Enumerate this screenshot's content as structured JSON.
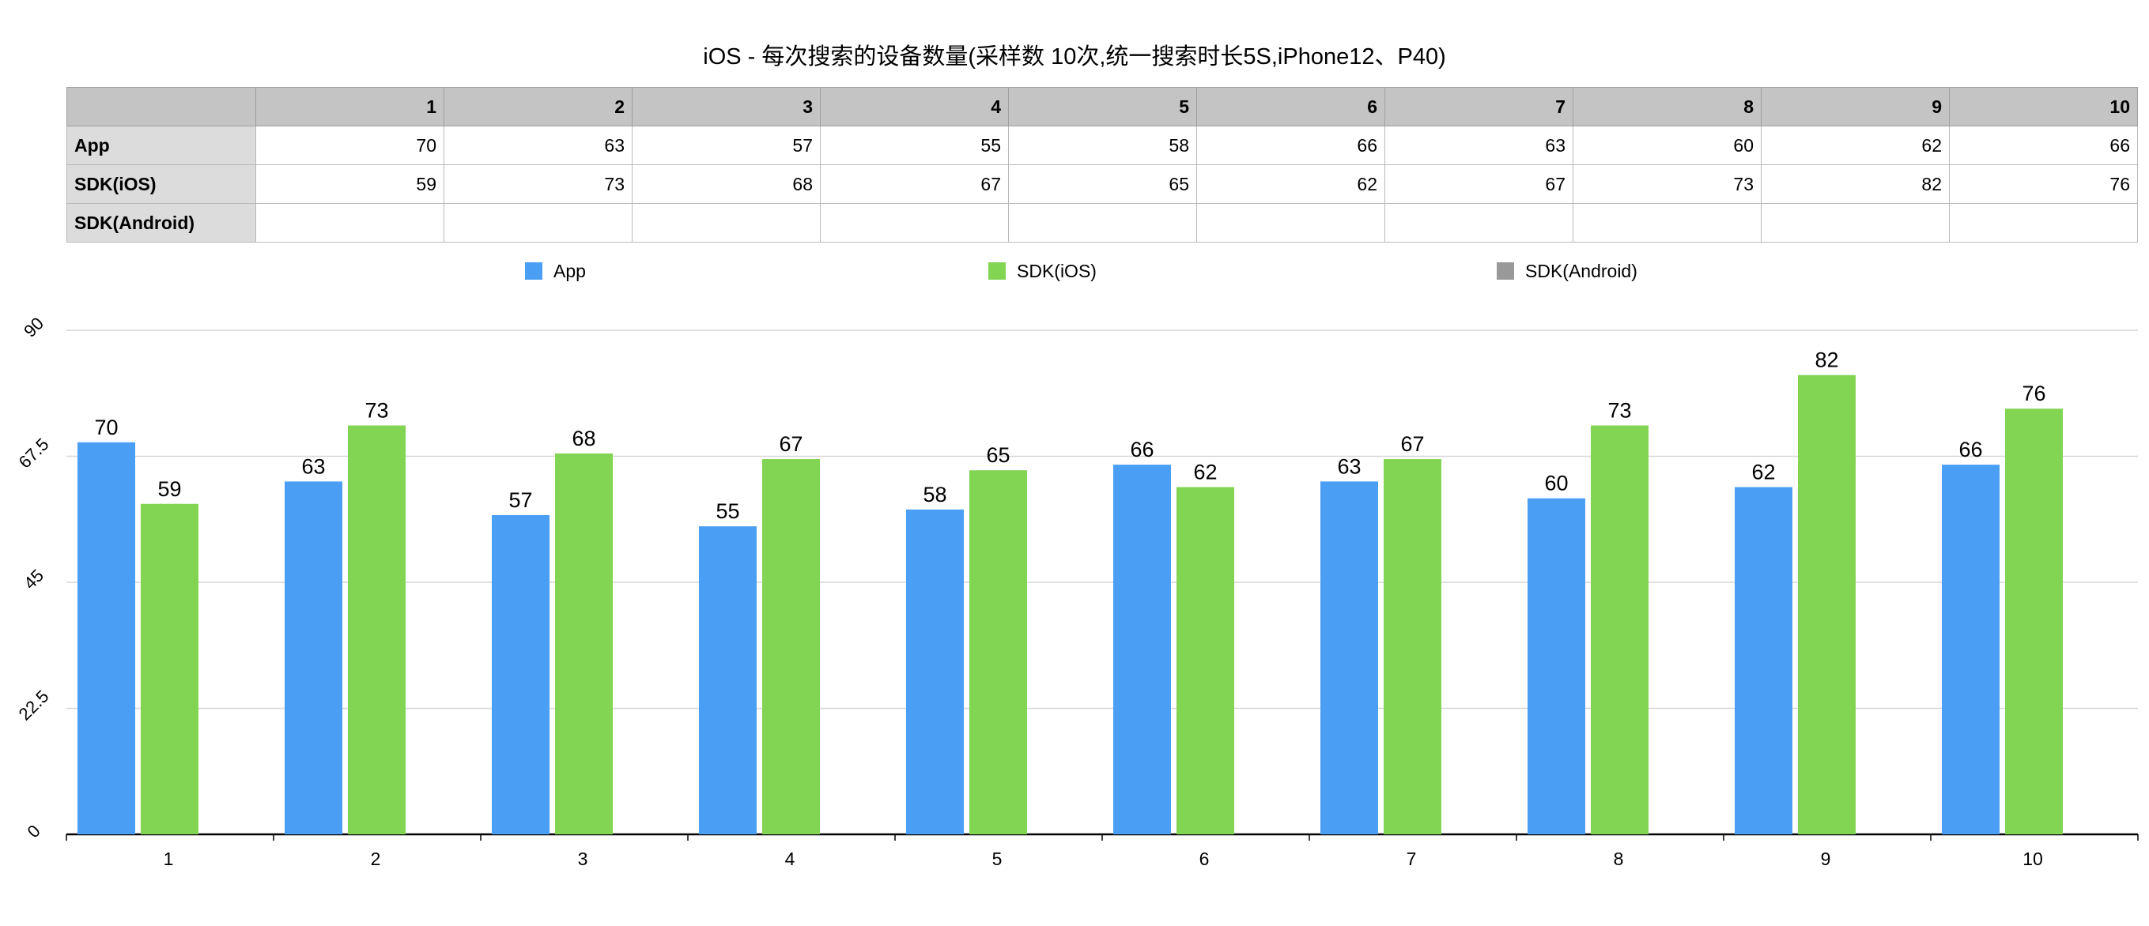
{
  "chart_data": {
    "type": "bar",
    "title": "iOS - 每次搜索的设备数量(采样数 10次,统一搜索时长5S,iPhone12、P40)",
    "categories": [
      "1",
      "2",
      "3",
      "4",
      "5",
      "6",
      "7",
      "8",
      "9",
      "10"
    ],
    "series": [
      {
        "name": "App",
        "color": "#4a9ff5",
        "values": [
          70,
          63,
          57,
          55,
          58,
          66,
          63,
          60,
          62,
          66
        ]
      },
      {
        "name": "SDK(iOS)",
        "color": "#82d552",
        "values": [
          59,
          73,
          68,
          67,
          65,
          62,
          67,
          73,
          82,
          76
        ]
      },
      {
        "name": "SDK(Android)",
        "color": "#999999",
        "values": [
          null,
          null,
          null,
          null,
          null,
          null,
          null,
          null,
          null,
          null
        ]
      }
    ],
    "ylim": [
      0,
      90
    ],
    "yticks": [
      "0",
      "22.5",
      "45",
      "67.5",
      "90"
    ],
    "xlabel": "",
    "ylabel": "",
    "grid": true,
    "legend": "top",
    "data_labels": true
  }
}
